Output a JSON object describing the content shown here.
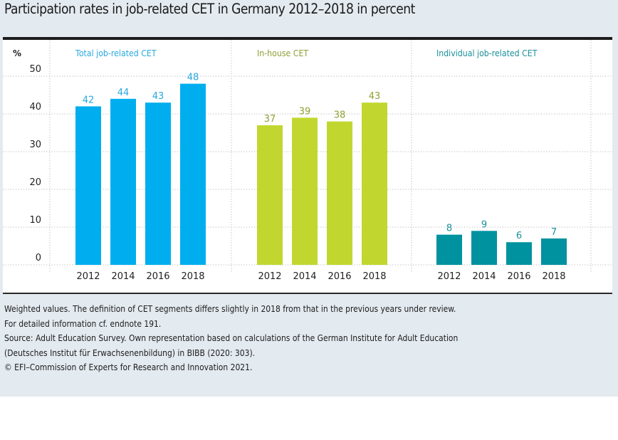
{
  "title": "Participation rates in job-related CET in Germany 2012–2018 in percent",
  "y_unit_label": "%",
  "notes": [
    "Weighted values. The definition of CET segments differs slightly in 2018 from that in the previous years under review.",
    "For detailed information cf. endnote 191.",
    "Source: Adult Education Survey. Own representation based on calculations of the German Institute for Adult Education",
    "(Deutsches Institut für Erwachsenenbildung) in BIBB (2020: 303).",
    "© EFI–Commission of Experts for Research and Innovation 2021."
  ],
  "chart_data": {
    "type": "bar",
    "title": "Participation rates in job-related CET in Germany 2012–2018 in percent",
    "xlabel": "",
    "ylabel": "%",
    "ylim": [
      0,
      50
    ],
    "yticks": [
      0,
      10,
      20,
      30,
      40,
      50
    ],
    "grid": true,
    "categories": [
      "2012",
      "2014",
      "2016",
      "2018"
    ],
    "panels": [
      {
        "name": "Total job-related CET",
        "color": "#00aeef",
        "label_color": "#29a8e0",
        "values": [
          42,
          44,
          43,
          48
        ]
      },
      {
        "name": "In-house CET",
        "color": "#c1d72f",
        "label_color": "#8fa033",
        "values": [
          37,
          39,
          38,
          43
        ]
      },
      {
        "name": "Individual job-related CET",
        "color": "#00929f",
        "label_color": "#1a8f99",
        "values": [
          8,
          9,
          6,
          7
        ]
      }
    ]
  }
}
